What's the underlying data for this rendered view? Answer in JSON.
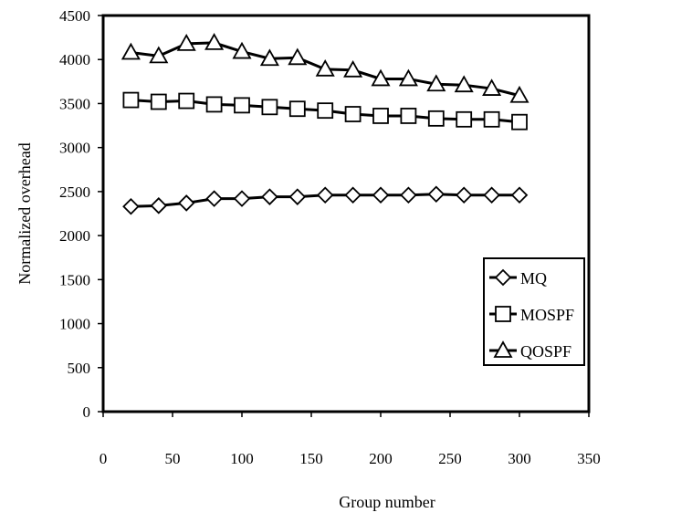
{
  "chart_data": {
    "type": "line",
    "title": "",
    "xlabel": "Group number",
    "ylabel": "Normalized overhead",
    "xlim": [
      0,
      350
    ],
    "ylim": [
      0,
      4500
    ],
    "xticks": [
      0,
      50,
      100,
      150,
      200,
      250,
      300,
      350
    ],
    "yticks": [
      0,
      500,
      1000,
      1500,
      2000,
      2500,
      3000,
      3500,
      4000,
      4500
    ],
    "x_tick_labels": [
      "0",
      "50",
      "100",
      "150",
      "200",
      "250",
      "300",
      "350"
    ],
    "y_tick_labels": [
      "0",
      "500",
      "1000",
      "1500",
      "2000",
      "2500",
      "3000",
      "3500",
      "4000",
      "4500"
    ],
    "grid": false,
    "legend_position": "right",
    "x": [
      20,
      40,
      60,
      80,
      100,
      120,
      140,
      160,
      180,
      200,
      220,
      240,
      260,
      280,
      300
    ],
    "series": [
      {
        "name": "MQ",
        "marker": "diamond",
        "values": [
          2330,
          2340,
          2370,
          2420,
          2420,
          2440,
          2440,
          2460,
          2460,
          2460,
          2460,
          2470,
          2460,
          2460,
          2460
        ]
      },
      {
        "name": "MOSPF",
        "marker": "square",
        "values": [
          3540,
          3520,
          3530,
          3490,
          3480,
          3460,
          3440,
          3420,
          3380,
          3360,
          3360,
          3330,
          3320,
          3320,
          3290
        ]
      },
      {
        "name": "QOSPF",
        "marker": "triangle",
        "values": [
          4080,
          4040,
          4180,
          4190,
          4090,
          4010,
          4020,
          3890,
          3880,
          3780,
          3780,
          3720,
          3710,
          3670,
          3590
        ]
      }
    ]
  }
}
